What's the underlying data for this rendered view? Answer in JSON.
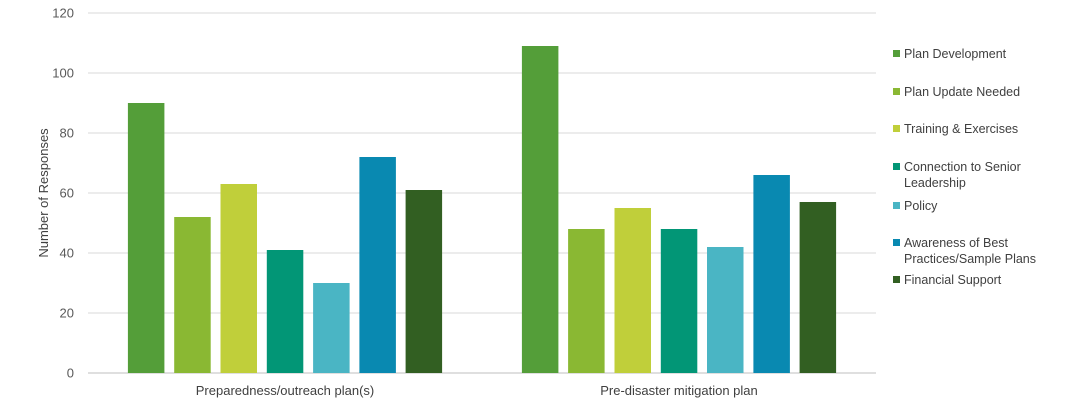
{
  "chart_data": {
    "type": "bar",
    "categories": [
      "Preparedness/outreach plan(s)",
      "Pre-disaster mitigation plan"
    ],
    "series": [
      {
        "name": "Plan Development",
        "color": "#549e39",
        "values": [
          90,
          109
        ]
      },
      {
        "name": "Plan Update Needed",
        "color": "#8ab833",
        "values": [
          52,
          48
        ]
      },
      {
        "name": "Training & Exercises",
        "color": "#c0cf3a",
        "values": [
          63,
          55
        ]
      },
      {
        "name": "Connection to Senior Leadership",
        "color": "#029676",
        "values": [
          41,
          48
        ]
      },
      {
        "name": "Policy",
        "color": "#4ab5c4",
        "values": [
          30,
          42
        ]
      },
      {
        "name": "Awareness of Best Practices/Sample Plans",
        "color": "#0989b1",
        "values": [
          72,
          66
        ]
      },
      {
        "name": "Financial Support",
        "color": "#325f22",
        "values": [
          61,
          57
        ]
      }
    ],
    "title": "",
    "xlabel": "",
    "ylabel": "Number of Responses",
    "ylim": [
      0,
      120
    ],
    "yticks": [
      0,
      20,
      40,
      60,
      80,
      100,
      120
    ],
    "grid": true,
    "legend_position": "right"
  }
}
